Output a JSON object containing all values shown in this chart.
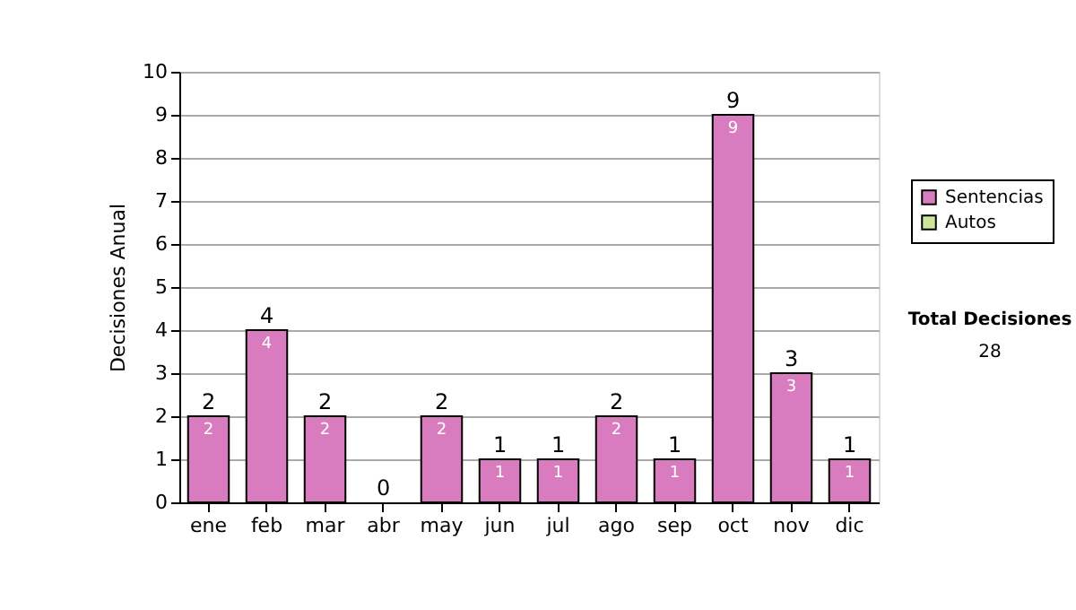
{
  "chart_data": {
    "type": "bar",
    "stacked": true,
    "ylabel": "Decisiones Anual",
    "categories": [
      "ene",
      "feb",
      "mar",
      "abr",
      "may",
      "jun",
      "jul",
      "ago",
      "sep",
      "oct",
      "nov",
      "dic"
    ],
    "series": [
      {
        "name": "Sentencias",
        "color": "#d97bbf",
        "values": [
          2,
          4,
          2,
          0,
          2,
          1,
          1,
          2,
          1,
          9,
          3,
          1
        ],
        "value_labels": [
          "2",
          "4",
          "2",
          null,
          "2",
          "1",
          "1",
          "2",
          "1",
          "9",
          "3",
          "1"
        ]
      },
      {
        "name": "Autos",
        "color": "#cce699",
        "values": [
          0,
          0,
          0,
          0,
          0,
          0,
          0,
          0,
          0,
          0,
          0,
          0
        ]
      }
    ],
    "totals": [
      "2",
      "4",
      "2",
      "0",
      "2",
      "1",
      "1",
      "2",
      "1",
      "9",
      "3",
      "1"
    ],
    "ylim": [
      0,
      10
    ],
    "yticks": [
      0,
      1,
      2,
      3,
      4,
      5,
      6,
      7,
      8,
      9,
      10
    ],
    "grid": "y",
    "legend": "right",
    "annotations": [
      "Total Decisiones",
      "28"
    ]
  }
}
